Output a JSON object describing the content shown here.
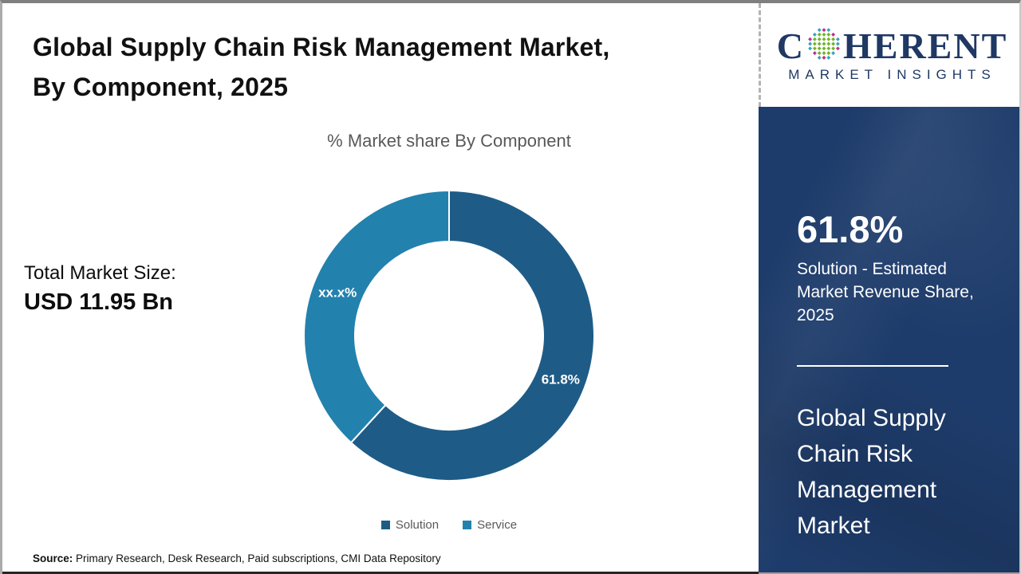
{
  "header": {
    "title_lines": [
      "Global Supply Chain Risk Management Market,",
      "By Component, 2025"
    ]
  },
  "chart_data": {
    "type": "pie",
    "donut": true,
    "title": "% Market share By Component",
    "labels": [
      "Solution",
      "Service"
    ],
    "values": [
      61.8,
      38.2
    ],
    "value_labels": [
      "61.8%",
      "xx.x%"
    ],
    "colors": [
      "#1e5c87",
      "#2381ad"
    ],
    "legend_position": "bottom"
  },
  "stats": {
    "label": "Total Market Size:",
    "value": "USD 11.95 Bn"
  },
  "source": {
    "prefix": "Source:",
    "text": " Primary Research, Desk Research, Paid subscriptions, CMI Data Repository"
  },
  "sidebar": {
    "logo": {
      "part1": "C",
      "part2": "HERENT",
      "subtitle": "MARKET INSIGHTS",
      "text_color": "#1f3864",
      "globe_colors": {
        "teal": "#35a3bd",
        "green": "#72b32c",
        "magenta": "#c02c8c"
      }
    },
    "highlight_value": "61.8%",
    "highlight_caption": "Solution  - Estimated Market Revenue Share, 2025",
    "market_name": "Global Supply Chain Risk Management Market",
    "panel_color": "#1e3c6b"
  }
}
